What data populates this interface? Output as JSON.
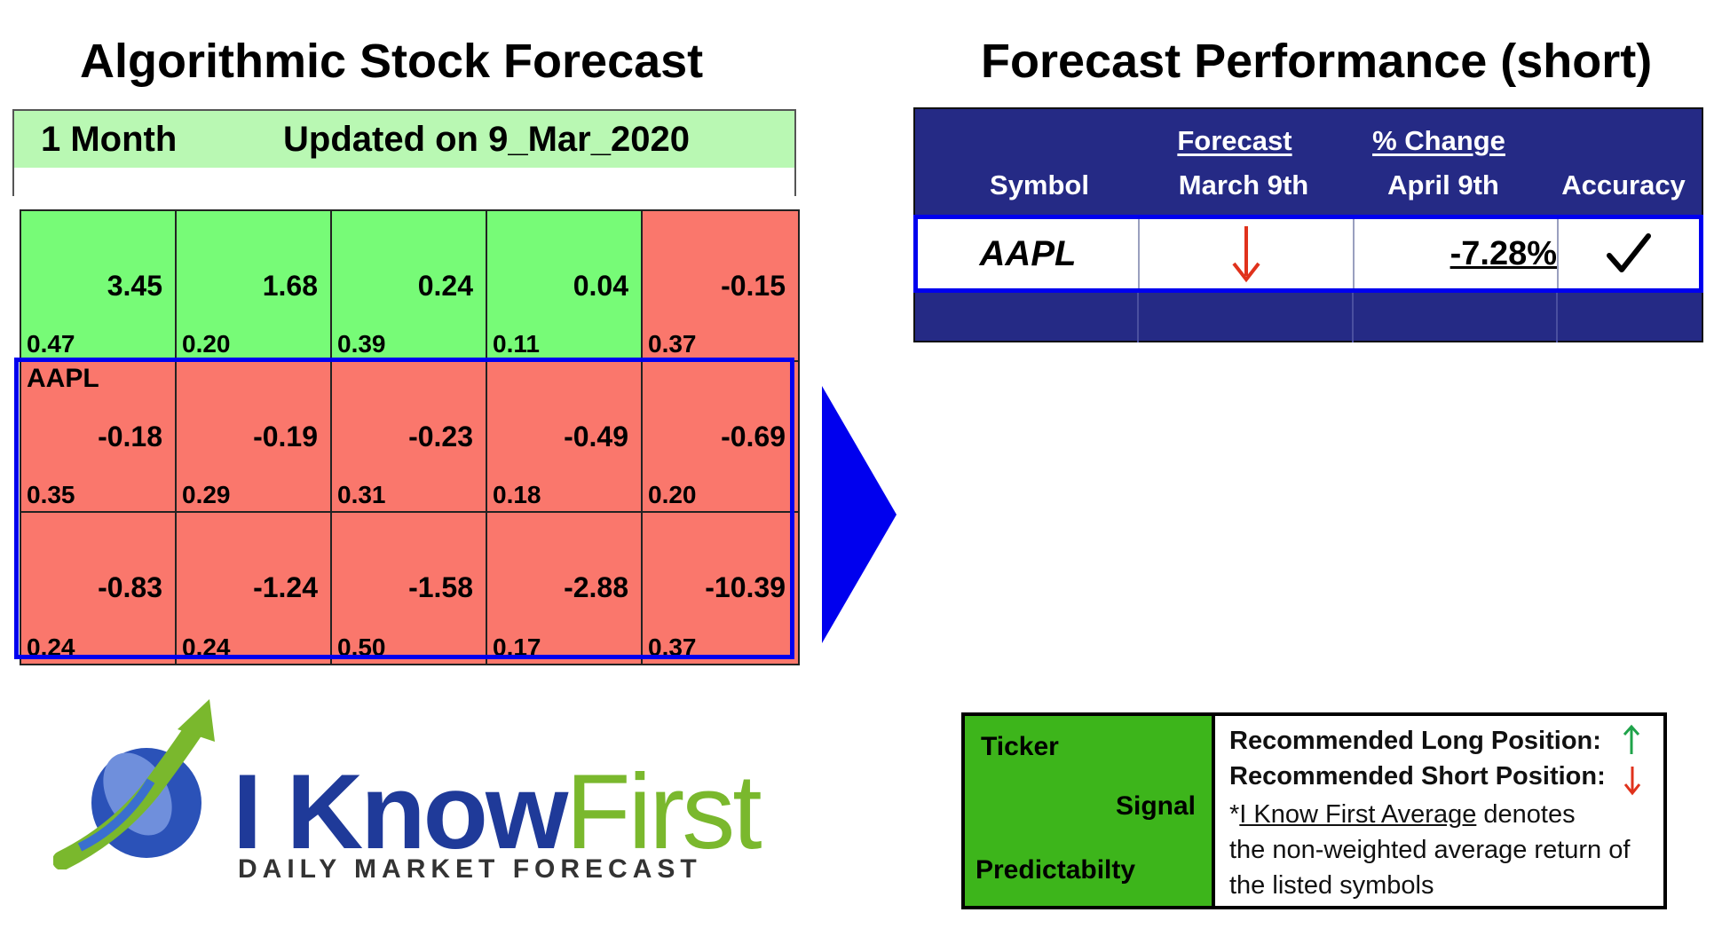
{
  "left": {
    "title": "Algorithmic Stock Forecast",
    "period": "1 Month",
    "updated": "Updated on 9_Mar_2020",
    "highlight_ticker": "AAPL",
    "rows": [
      [
        {
          "signal": "3.45",
          "pred": "0.47",
          "color": "green"
        },
        {
          "signal": "1.68",
          "pred": "0.20",
          "color": "green"
        },
        {
          "signal": "0.24",
          "pred": "0.39",
          "color": "green"
        },
        {
          "signal": "0.04",
          "pred": "0.11",
          "color": "green"
        },
        {
          "signal": "-0.15",
          "pred": "0.37",
          "color": "red"
        }
      ],
      [
        {
          "signal": "-0.18",
          "pred": "0.35",
          "color": "red"
        },
        {
          "signal": "-0.19",
          "pred": "0.29",
          "color": "red"
        },
        {
          "signal": "-0.23",
          "pred": "0.31",
          "color": "red"
        },
        {
          "signal": "-0.49",
          "pred": "0.18",
          "color": "red"
        },
        {
          "signal": "-0.69",
          "pred": "0.20",
          "color": "red"
        }
      ],
      [
        {
          "signal": "-0.83",
          "pred": "0.24",
          "color": "red"
        },
        {
          "signal": "-1.24",
          "pred": "0.24",
          "color": "red"
        },
        {
          "signal": "-1.58",
          "pred": "0.50",
          "color": "red"
        },
        {
          "signal": "-2.88",
          "pred": "0.17",
          "color": "red"
        },
        {
          "signal": "-10.39",
          "pred": "0.37",
          "color": "red"
        }
      ]
    ]
  },
  "right": {
    "title": "Forecast Performance (short)",
    "headers": {
      "symbol": "Symbol",
      "forecast_top": "Forecast",
      "forecast_bottom": "March 9th",
      "change_top": "% Change",
      "change_bottom": "April 9th",
      "accuracy": "Accuracy"
    },
    "row": {
      "symbol": "AAPL",
      "forecast_icon": "down-arrow",
      "change": "-7.28%",
      "accuracy_icon": "checkmark"
    }
  },
  "legend": {
    "ticker": "Ticker",
    "signal": "Signal",
    "predictability": "Predictabilty",
    "long": "Recommended Long Position:",
    "short": "Recommended Short Position:",
    "avg_link": "I Know First Average",
    "avg_prefix": "*",
    "avg_text": " denotes",
    "line2": "the non-weighted average return of",
    "line3": "the listed symbols"
  },
  "logo": {
    "word1": "I Know",
    "word2": "First",
    "tagline": "DAILY MARKET FORECAST"
  },
  "colors": {
    "green_cell": "#77fb77",
    "red_cell": "#fa776c",
    "table_header": "#252a85",
    "highlight": "#0000ee"
  }
}
